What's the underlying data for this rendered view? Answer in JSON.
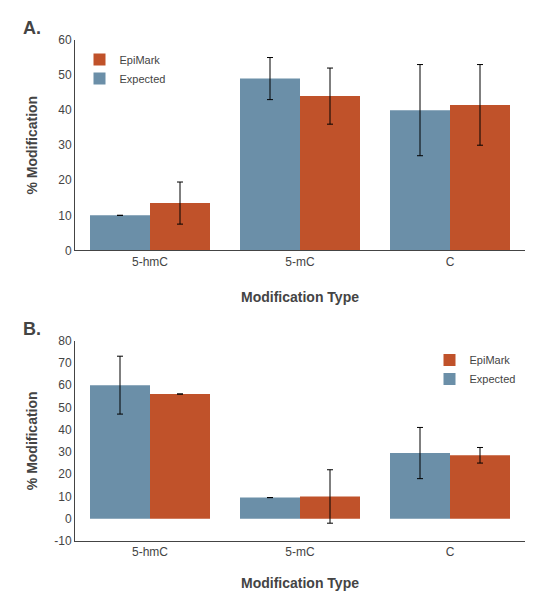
{
  "chart_data": [
    {
      "type": "bar",
      "title": "A.",
      "categories": [
        "5-hmC",
        "5-mC",
        "C"
      ],
      "series": [
        {
          "name": "Expected",
          "color": "#6b8fa8",
          "values": [
            10,
            49,
            40
          ],
          "errors": [
            0,
            6,
            13
          ]
        },
        {
          "name": "EpiMark",
          "color": "#c0522a",
          "values": [
            13.5,
            44,
            41.5
          ],
          "errors": [
            6,
            8,
            11.5
          ]
        }
      ],
      "x_label": "Modification Type",
      "y_label": "% Modification",
      "ylim": [
        0,
        60
      ],
      "yticks": [
        0,
        10,
        20,
        30,
        40,
        50,
        60
      ],
      "grid": false,
      "legend": "upper left"
    },
    {
      "type": "bar",
      "title": "B.",
      "categories": [
        "5-hmC",
        "5-mC",
        "C"
      ],
      "series": [
        {
          "name": "Expected",
          "color": "#6b8fa8",
          "values": [
            60,
            9.5,
            29.5
          ],
          "errors": [
            13,
            0,
            11.5
          ]
        },
        {
          "name": "EpiMark",
          "color": "#c0522a",
          "values": [
            56,
            10,
            28.5
          ],
          "errors": [
            0,
            12,
            3.5
          ]
        }
      ],
      "x_label": "Modification Type",
      "y_label": "% Modification",
      "ylim": [
        -10,
        80
      ],
      "yticks": [
        -10,
        0,
        10,
        20,
        30,
        40,
        50,
        60,
        70,
        80
      ],
      "grid": false,
      "legend": "upper right"
    }
  ]
}
